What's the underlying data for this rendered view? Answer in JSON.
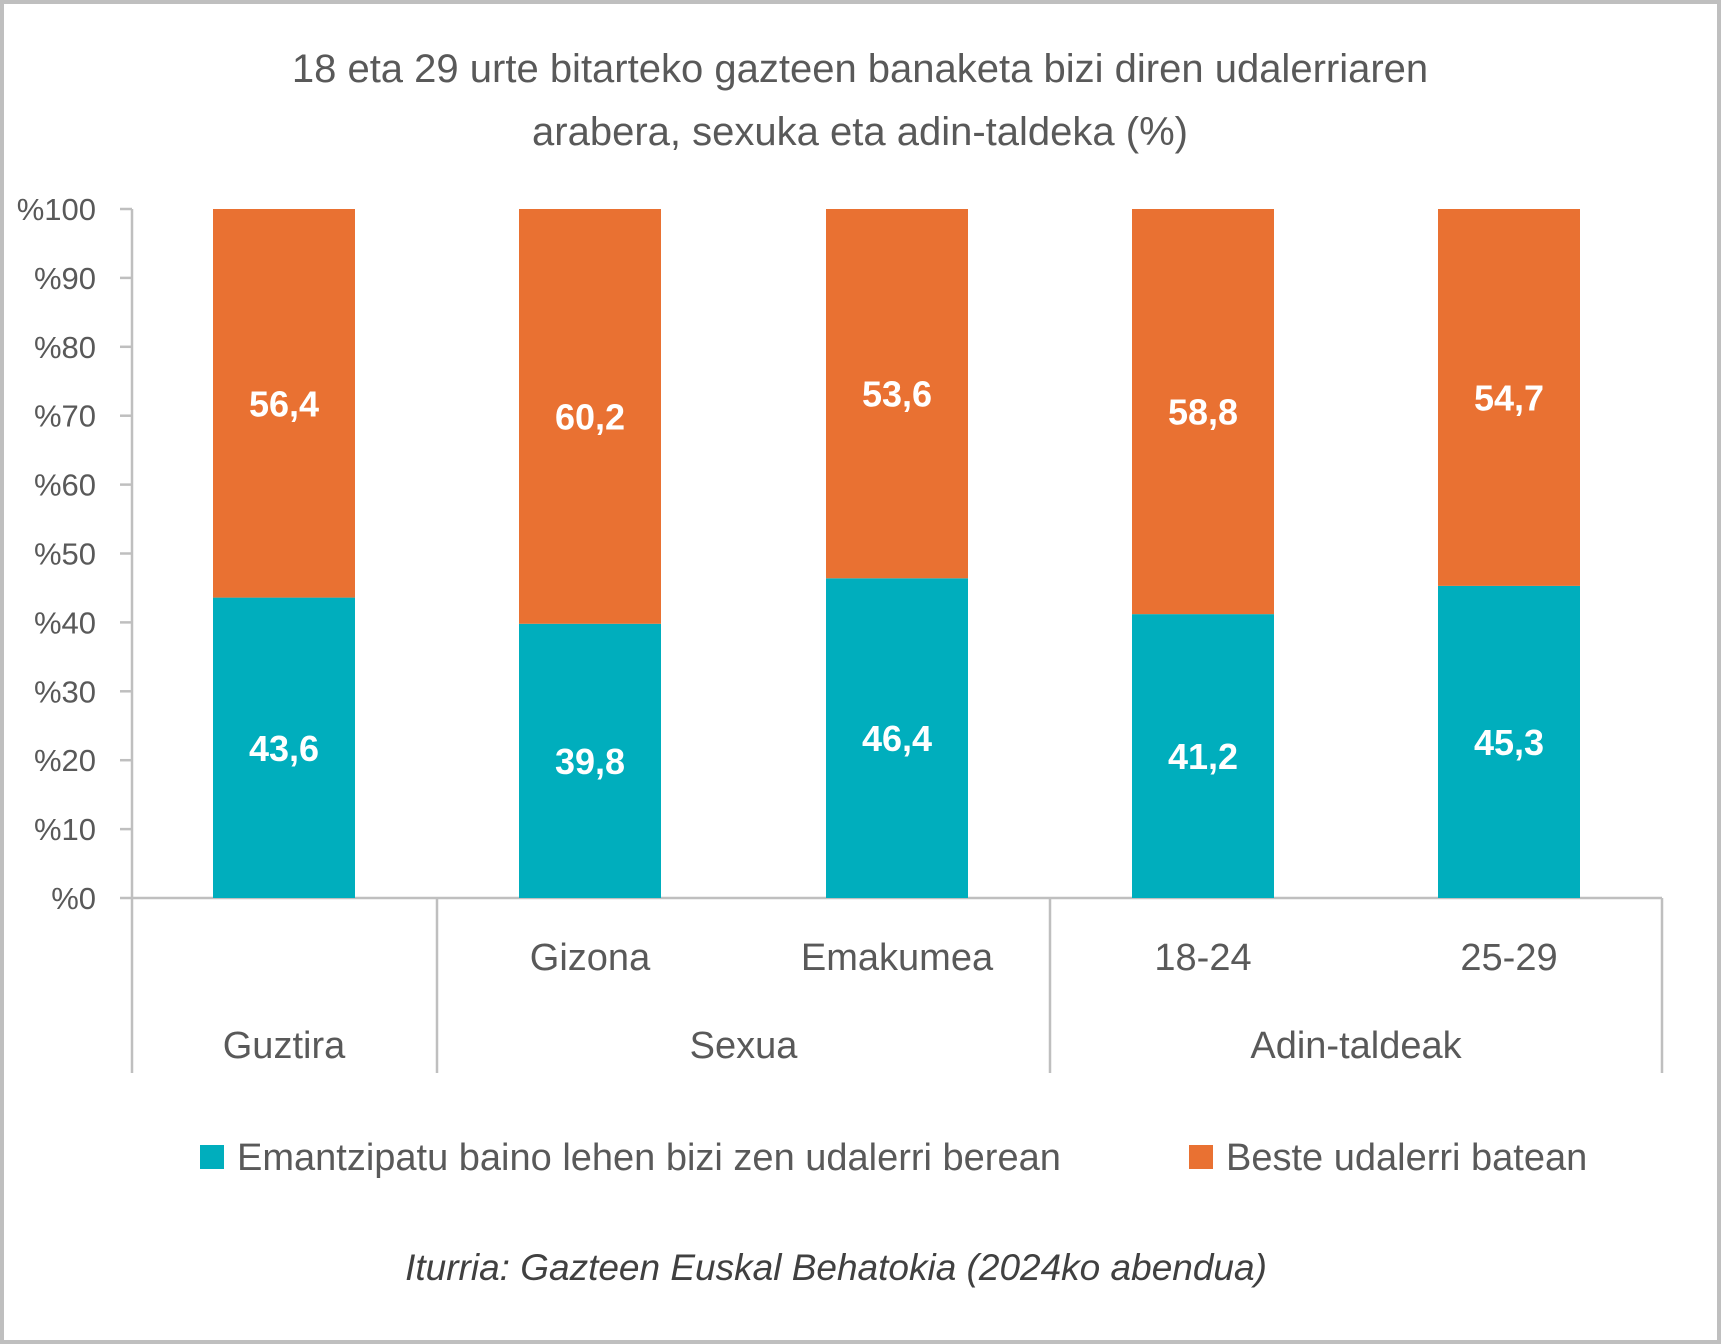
{
  "chart_data": {
    "type": "bar",
    "stacked": true,
    "title": "18 eta 29 urte bitarteko gazteen banaketa bizi diren udalerriaren arabera, sexuka eta adin-taldeka (%)",
    "title_lines": [
      "18 eta 29 urte bitarteko gazteen banaketa bizi diren udalerriaren",
      "arabera, sexuka eta adin-taldeka (%)"
    ],
    "categories": [
      "",
      "Gizona",
      "Emakumea",
      "18-24",
      "25-29"
    ],
    "groups": [
      {
        "label": "Guztira",
        "span": 1
      },
      {
        "label": "Sexua",
        "span": 2
      },
      {
        "label": "Adin-taldeak",
        "span": 2
      }
    ],
    "series": [
      {
        "name": "Emantzipatu baino lehen bizi zen udalerri berean",
        "color": "#00AEBD",
        "values": [
          43.6,
          39.8,
          46.4,
          41.2,
          45.3
        ],
        "labels": [
          "43,6",
          "39,8",
          "46,4",
          "41,2",
          "45,3"
        ]
      },
      {
        "name": "Beste udalerri batean",
        "color": "#E97132",
        "values": [
          56.4,
          60.2,
          53.6,
          58.8,
          54.7
        ],
        "labels": [
          "56,4",
          "60,2",
          "53,6",
          "58,8",
          "54,7"
        ]
      }
    ],
    "ylim": [
      0,
      100
    ],
    "yticks": [
      "%0",
      "%10",
      "%20",
      "%30",
      "%40",
      "%50",
      "%60",
      "%70",
      "%80",
      "%90",
      "%100"
    ],
    "grid": false,
    "legend_position": "bottom",
    "source": "Iturria: Gazteen Euskal Behatokia (2024ko abendua)"
  }
}
